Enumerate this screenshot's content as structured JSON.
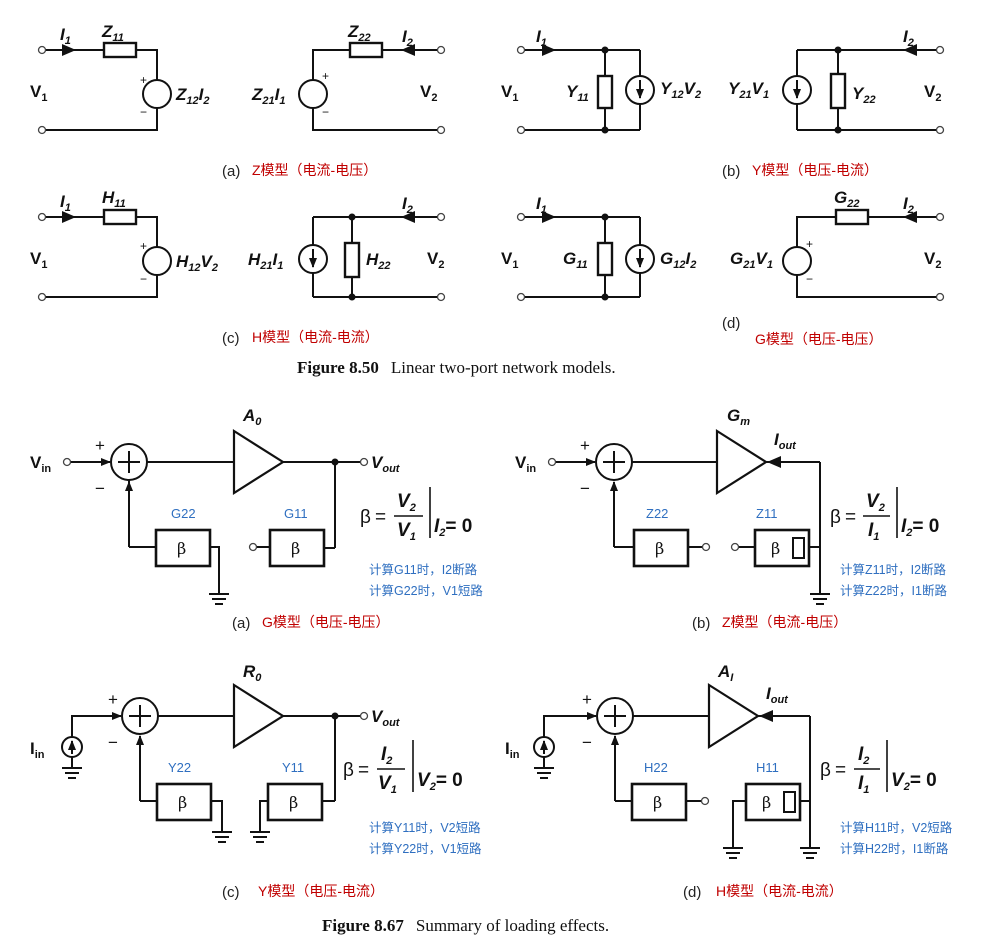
{
  "figure_850": {
    "number": "Figure 8.50",
    "caption": "Linear two-port network models.",
    "panels": {
      "a": {
        "tag": "(a)",
        "title": "Z模型（电流-电压）",
        "p1": "Z",
        "p1s": "11",
        "p2": "Z",
        "p2s": "12",
        "p2v": "I",
        "p2vs": "2",
        "p3": "Z",
        "p3s": "21",
        "p3v": "I",
        "p3vs": "1",
        "p4": "Z",
        "p4s": "22"
      },
      "b": {
        "tag": "(b)",
        "title": "Y模型（电压-电流）",
        "p1": "Y",
        "p1s": "11",
        "p2": "Y",
        "p2s": "12",
        "p2v": "V",
        "p2vs": "2",
        "p3": "Y",
        "p3s": "21",
        "p3v": "V",
        "p3vs": "1",
        "p4": "Y",
        "p4s": "22"
      },
      "c": {
        "tag": "(c)",
        "title": "H模型（电流-电流）",
        "p1": "H",
        "p1s": "11",
        "p2": "H",
        "p2s": "12",
        "p2v": "V",
        "p2vs": "2",
        "p3": "H",
        "p3s": "21",
        "p3v": "I",
        "p3vs": "1",
        "p4": "H",
        "p4s": "22"
      },
      "d": {
        "tag": "(d)",
        "title": "G模型（电压-电压）",
        "p1": "G",
        "p1s": "11",
        "p2": "G",
        "p2s": "12",
        "p2v": "I",
        "p2vs": "2",
        "p3": "G",
        "p3s": "21",
        "p3v": "V",
        "p3vs": "1",
        "p4": "G",
        "p4s": "22"
      }
    },
    "port": {
      "I": "I",
      "V": "V",
      "s1": "1",
      "s2": "2"
    }
  },
  "figure_867": {
    "number": "Figure 8.67",
    "caption": "Summary of loading effects.",
    "beta_symbol": "β",
    "panels": {
      "a": {
        "tag": "(a)",
        "title": "G模型（电压-电压）",
        "amp": "A",
        "amp_sub": "0",
        "in": "V",
        "in_sub": "in",
        "out": "V",
        "out_sub": "out",
        "left_label": "G22",
        "right_label": "G11",
        "eq_num": "V",
        "eq_num_sub": "2",
        "eq_den": "V",
        "eq_den_sub": "1",
        "eq_cond": "I",
        "eq_cond_sub": "2",
        "eq_cond_val": "= 0",
        "note1": "计算G11时，I2断路",
        "note2": "计算G22时，V1短路"
      },
      "b": {
        "tag": "(b)",
        "title": "Z模型（电流-电压）",
        "amp": "G",
        "amp_sub": "m",
        "in": "V",
        "in_sub": "in",
        "out": "I",
        "out_sub": "out",
        "left_label": "Z22",
        "right_label": "Z11",
        "eq_num": "V",
        "eq_num_sub": "2",
        "eq_den": "I",
        "eq_den_sub": "1",
        "eq_cond": "I",
        "eq_cond_sub": "2",
        "eq_cond_val": "= 0",
        "note1": "计算Z11时，I2断路",
        "note2": "计算Z22时，I1断路"
      },
      "c": {
        "tag": "(c)",
        "title": "Y模型（电压-电流）",
        "amp": "R",
        "amp_sub": "0",
        "in": "I",
        "in_sub": "in",
        "out": "V",
        "out_sub": "out",
        "left_label": "Y22",
        "right_label": "Y11",
        "eq_num": "I",
        "eq_num_sub": "2",
        "eq_den": "V",
        "eq_den_sub": "1",
        "eq_cond": "V",
        "eq_cond_sub": "2",
        "eq_cond_val": "= 0",
        "note1": "计算Y11时，V2短路",
        "note2": "计算Y22时，V1短路"
      },
      "d": {
        "tag": "(d)",
        "title": "H模型（电流-电流）",
        "amp": "A",
        "amp_sub": "I",
        "in": "I",
        "in_sub": "in",
        "out": "I",
        "out_sub": "out",
        "left_label": "H22",
        "right_label": "H11",
        "eq_num": "I",
        "eq_num_sub": "2",
        "eq_den": "I",
        "eq_den_sub": "1",
        "eq_cond": "V",
        "eq_cond_sub": "2",
        "eq_cond_val": "= 0",
        "note1": "计算H11时，V2短路",
        "note2": "计算H22时，I1断路"
      }
    }
  }
}
